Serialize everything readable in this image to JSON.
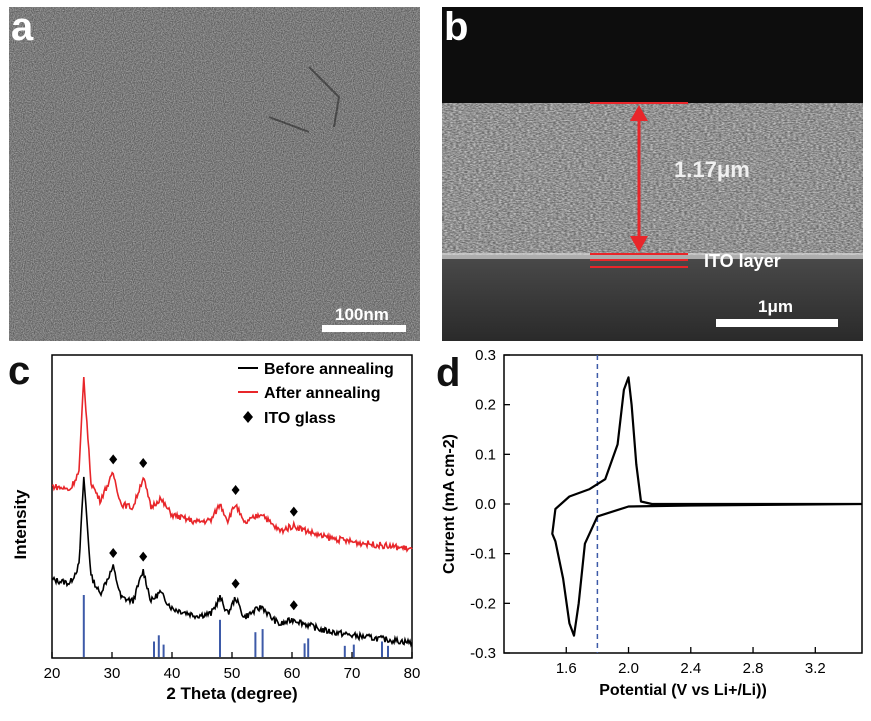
{
  "panels": {
    "a": {
      "label": "a",
      "scale_bar": "100nm"
    },
    "b": {
      "label": "b",
      "thickness": "1.17μm",
      "layer_label": "ITO layer",
      "scale_bar": "1μm",
      "marker_color": "#e8262a"
    },
    "c": {
      "label": "c"
    },
    "d": {
      "label": "d"
    }
  },
  "chart_data": [
    {
      "type": "line",
      "panel": "c",
      "xlabel": "2 Theta (degree)",
      "ylabel": "Intensity",
      "xlim": [
        20,
        80
      ],
      "xticks": [
        20,
        30,
        40,
        50,
        60,
        70,
        80
      ],
      "legend_placement": "top-right",
      "series": [
        {
          "name": "Before annealing",
          "color": "#000000",
          "x": [
            20,
            23,
            24.5,
            25.3,
            26.5,
            28,
            30.2,
            31.5,
            33.5,
            35.2,
            36.5,
            38,
            40,
            44,
            46.5,
            48,
            49.3,
            50.6,
            52,
            53.5,
            55,
            56.5,
            58,
            60.3,
            62.5,
            65,
            70,
            75,
            80
          ],
          "y": [
            0.38,
            0.36,
            0.46,
            0.95,
            0.4,
            0.3,
            0.45,
            0.28,
            0.26,
            0.43,
            0.26,
            0.31,
            0.22,
            0.18,
            0.19,
            0.28,
            0.19,
            0.28,
            0.17,
            0.2,
            0.23,
            0.17,
            0.13,
            0.16,
            0.13,
            0.1,
            0.07,
            0.05,
            0.03
          ]
        },
        {
          "name": "After annealing",
          "color": "#e8262a",
          "x": [
            20,
            23,
            24.5,
            25.3,
            26.5,
            28,
            30.2,
            31.5,
            33.5,
            35.2,
            36.5,
            38,
            40,
            44,
            46.5,
            48,
            49.3,
            50.6,
            52,
            53.5,
            55,
            56.5,
            58,
            60.3,
            62.5,
            65,
            70,
            75,
            80
          ],
          "y": [
            0.9,
            0.88,
            0.98,
            1.5,
            0.92,
            0.82,
            0.97,
            0.8,
            0.78,
            0.95,
            0.78,
            0.83,
            0.74,
            0.7,
            0.71,
            0.8,
            0.71,
            0.8,
            0.69,
            0.72,
            0.75,
            0.69,
            0.65,
            0.68,
            0.65,
            0.62,
            0.59,
            0.57,
            0.55
          ]
        },
        {
          "name": "ITO glass",
          "marker": "diamond",
          "x": [
            30.2,
            35.2,
            50.6,
            60.3
          ]
        }
      ],
      "reference_lines": {
        "color": "#3d5aa8",
        "x": [
          25.3,
          37.0,
          37.8,
          38.6,
          48.0,
          53.9,
          55.1,
          62.1,
          62.7,
          68.8,
          70.3,
          75.0,
          76.0
        ],
        "h": [
          1.0,
          0.25,
          0.35,
          0.2,
          0.6,
          0.4,
          0.45,
          0.22,
          0.3,
          0.18,
          0.2,
          0.25,
          0.18
        ]
      }
    },
    {
      "type": "line",
      "panel": "d",
      "xlabel": "Potential (V vs Li+/Li))",
      "ylabel": "Current (mA cm-2)",
      "xlim": [
        1.2,
        3.5
      ],
      "ylim": [
        -0.3,
        0.3
      ],
      "xticks": [
        1.6,
        2.0,
        2.4,
        2.8,
        3.2
      ],
      "yticks": [
        -0.3,
        -0.2,
        -0.1,
        0.0,
        0.1,
        0.2,
        0.3
      ],
      "dashed_vline": {
        "x": 1.8,
        "color": "#3d5aa8"
      },
      "series": [
        {
          "name": "",
          "color": "#000000",
          "x": [
            3.5,
            2.5,
            2.15,
            2.08,
            2.05,
            2.02,
            2.0,
            1.97,
            1.93,
            1.85,
            1.75,
            1.62,
            1.53,
            1.51,
            1.53,
            1.58,
            1.62,
            1.65,
            1.68,
            1.72,
            1.8,
            2.0,
            2.4,
            3.5
          ],
          "y": [
            0.0,
            0.0,
            0.0,
            0.005,
            0.08,
            0.2,
            0.255,
            0.23,
            0.12,
            0.05,
            0.03,
            0.015,
            -0.01,
            -0.06,
            -0.075,
            -0.15,
            -0.24,
            -0.265,
            -0.2,
            -0.08,
            -0.025,
            -0.005,
            -0.003,
            0.0
          ]
        }
      ]
    }
  ]
}
